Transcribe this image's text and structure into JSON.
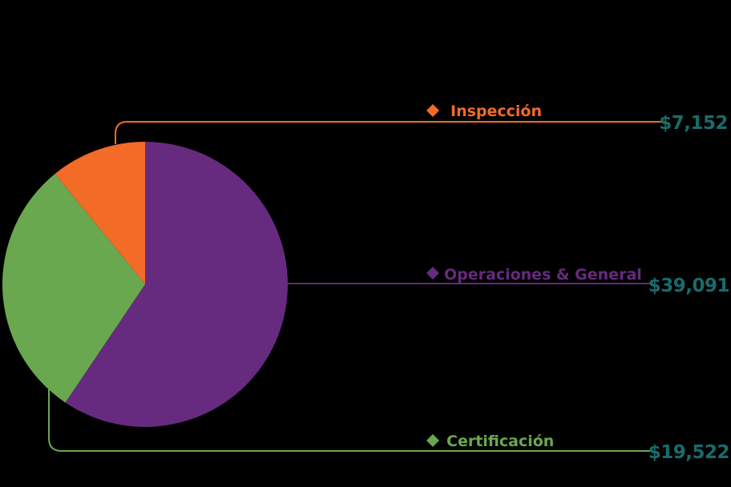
{
  "chart_data": {
    "type": "pie",
    "title": "",
    "slices": [
      {
        "label": "Operaciones & General",
        "value": 39091,
        "display_value": "$39,091",
        "color": "#662a7e"
      },
      {
        "label": "Certificación",
        "value": 19522,
        "display_value": "$19,522",
        "color": "#6aa84f"
      },
      {
        "label": "Inspección",
        "value": 7152,
        "display_value": "$7,152",
        "color": "#f26b27"
      }
    ],
    "value_color": "#1a6b6b",
    "background": "#000000",
    "legend_placement": "right"
  }
}
